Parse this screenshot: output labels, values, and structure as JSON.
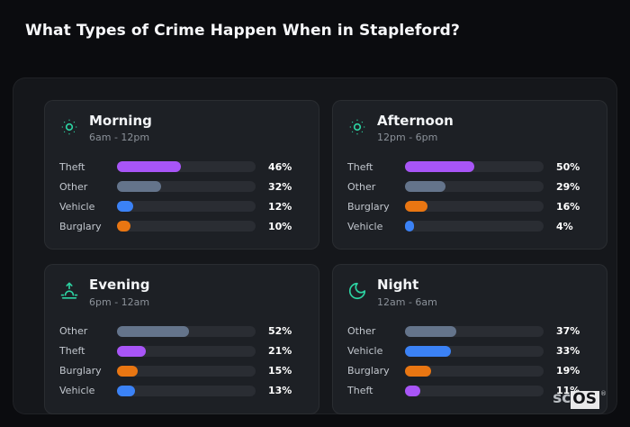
{
  "page": {
    "title": "What Types of Crime Happen When in Stapleford?",
    "watermark": {
      "prefix": "sc",
      "brand": "OS",
      "reg": "®"
    }
  },
  "colors": {
    "accent_teal": "#2dd4a3",
    "theft": "#a855f7",
    "other": "#64748b",
    "vehicle": "#3b82f6",
    "burglary": "#e97612",
    "track": "#2a2d33",
    "panel_bg": "#1d2025",
    "board_bg": "#15171b",
    "page_bg": "#0b0c0f"
  },
  "chart_data": [
    {
      "type": "bar",
      "orientation": "horizontal",
      "title": "Morning",
      "subtitle": "6am - 12pm",
      "icon": "sun-icon",
      "categories": [
        "Theft",
        "Other",
        "Vehicle",
        "Burglary"
      ],
      "values": [
        46,
        32,
        12,
        10
      ],
      "value_labels": [
        "46%",
        "32%",
        "12%",
        "10%"
      ],
      "colors": [
        "#a855f7",
        "#64748b",
        "#3b82f6",
        "#e97612"
      ],
      "xlim": [
        0,
        100
      ],
      "grid": false,
      "legend": false
    },
    {
      "type": "bar",
      "orientation": "horizontal",
      "title": "Afternoon",
      "subtitle": "12pm - 6pm",
      "icon": "sun-icon",
      "categories": [
        "Theft",
        "Other",
        "Burglary",
        "Vehicle"
      ],
      "values": [
        50,
        29,
        16,
        4
      ],
      "value_labels": [
        "50%",
        "29%",
        "16%",
        "4%"
      ],
      "colors": [
        "#a855f7",
        "#64748b",
        "#e97612",
        "#3b82f6"
      ],
      "xlim": [
        0,
        100
      ],
      "grid": false,
      "legend": false
    },
    {
      "type": "bar",
      "orientation": "horizontal",
      "title": "Evening",
      "subtitle": "6pm - 12am",
      "icon": "sunrise-icon",
      "categories": [
        "Other",
        "Theft",
        "Burglary",
        "Vehicle"
      ],
      "values": [
        52,
        21,
        15,
        13
      ],
      "value_labels": [
        "52%",
        "21%",
        "15%",
        "13%"
      ],
      "colors": [
        "#64748b",
        "#a855f7",
        "#e97612",
        "#3b82f6"
      ],
      "xlim": [
        0,
        100
      ],
      "grid": false,
      "legend": false
    },
    {
      "type": "bar",
      "orientation": "horizontal",
      "title": "Night",
      "subtitle": "12am - 6am",
      "icon": "moon-icon",
      "categories": [
        "Other",
        "Vehicle",
        "Burglary",
        "Theft"
      ],
      "values": [
        37,
        33,
        19,
        11
      ],
      "value_labels": [
        "37%",
        "33%",
        "19%",
        "11%"
      ],
      "colors": [
        "#64748b",
        "#3b82f6",
        "#e97612",
        "#a855f7"
      ],
      "xlim": [
        0,
        100
      ],
      "grid": false,
      "legend": false
    }
  ]
}
